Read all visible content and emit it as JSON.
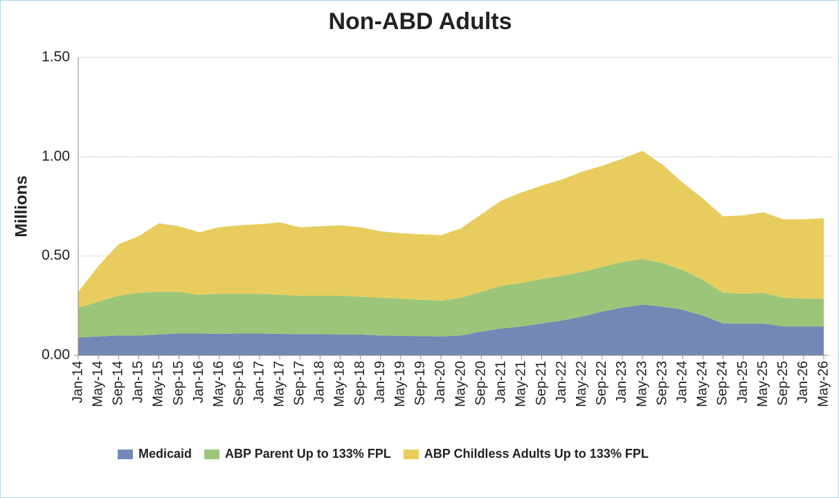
{
  "chart_data": {
    "type": "stacked_area",
    "title": "Non-ABD Adults",
    "y_label": "Millions",
    "categories": [
      "Jan-14",
      "May-14",
      "Sep-14",
      "Jan-15",
      "May-15",
      "Sep-15",
      "Jan-16",
      "May-16",
      "Sep-16",
      "Jan-17",
      "May-17",
      "Sep-17",
      "Jan-18",
      "May-18",
      "Sep-18",
      "Jan-19",
      "May-19",
      "Sep-19",
      "Jan-20",
      "May-20",
      "Sep-20",
      "Jan-21",
      "May-21",
      "Sep-21",
      "Jan-22",
      "May-22",
      "Sep-22",
      "Jan-23",
      "May-23",
      "Sep-23",
      "Jan-24",
      "May-24",
      "Sep-24",
      "Jan-25",
      "May-25",
      "Sep-25",
      "Jan-26",
      "May-26"
    ],
    "series": [
      {
        "name": "Medicaid",
        "color": "#7189b4",
        "values": [
          0.09,
          0.095,
          0.1,
          0.1,
          0.105,
          0.11,
          0.11,
          0.108,
          0.11,
          0.11,
          0.108,
          0.107,
          0.107,
          0.105,
          0.105,
          0.1,
          0.098,
          0.097,
          0.095,
          0.1,
          0.12,
          0.135,
          0.145,
          0.16,
          0.175,
          0.195,
          0.22,
          0.24,
          0.255,
          0.245,
          0.23,
          0.2,
          0.16,
          0.16,
          0.16,
          0.145,
          0.145,
          0.145
        ]
      },
      {
        "name": "ABP Parent Up to 133% FPL",
        "color": "#9bc67a",
        "values": [
          0.15,
          0.175,
          0.2,
          0.215,
          0.215,
          0.21,
          0.195,
          0.202,
          0.2,
          0.2,
          0.197,
          0.193,
          0.193,
          0.195,
          0.19,
          0.19,
          0.187,
          0.183,
          0.18,
          0.19,
          0.2,
          0.215,
          0.22,
          0.225,
          0.225,
          0.225,
          0.225,
          0.23,
          0.23,
          0.22,
          0.2,
          0.18,
          0.155,
          0.15,
          0.155,
          0.145,
          0.14,
          0.14
        ]
      },
      {
        "name": "ABP Childless Adults Up to 133% FPL",
        "color": "#e8cd5e",
        "values": [
          0.08,
          0.18,
          0.26,
          0.285,
          0.345,
          0.33,
          0.315,
          0.335,
          0.345,
          0.35,
          0.365,
          0.345,
          0.35,
          0.355,
          0.35,
          0.335,
          0.33,
          0.33,
          0.33,
          0.35,
          0.39,
          0.43,
          0.455,
          0.47,
          0.485,
          0.505,
          0.51,
          0.52,
          0.545,
          0.495,
          0.44,
          0.41,
          0.385,
          0.395,
          0.405,
          0.395,
          0.4,
          0.405
        ]
      }
    ],
    "ylim": [
      0,
      1.5
    ],
    "yticks": [
      {
        "value": 0,
        "label": "0.00"
      },
      {
        "value": 0.5,
        "label": "0.50"
      },
      {
        "value": 1,
        "label": "1.00"
      },
      {
        "value": 1.5,
        "label": "1.50"
      }
    ],
    "grid": true,
    "legend": "bottom"
  }
}
